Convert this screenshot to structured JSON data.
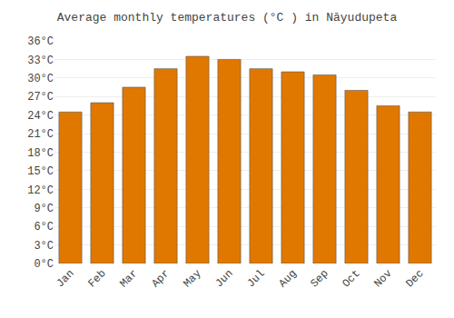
{
  "chart_data": {
    "type": "bar",
    "title": "Average monthly temperatures (°C ) in Nāyudupeta",
    "categories": [
      "Jan",
      "Feb",
      "Mar",
      "Apr",
      "May",
      "Jun",
      "Jul",
      "Aug",
      "Sep",
      "Oct",
      "Nov",
      "Dec"
    ],
    "values": [
      24.5,
      26.0,
      28.5,
      31.5,
      33.5,
      33.0,
      31.5,
      31.0,
      30.5,
      28.0,
      25.5,
      24.5
    ],
    "color": "#E07800",
    "ylim": [
      0,
      36
    ],
    "yticks": [
      {
        "value": 0,
        "label": "0°C"
      },
      {
        "value": 3,
        "label": "3°C"
      },
      {
        "value": 6,
        "label": "6°C"
      },
      {
        "value": 9,
        "label": "9°C"
      },
      {
        "value": 12,
        "label": "12°C"
      },
      {
        "value": 15,
        "label": "15°C"
      },
      {
        "value": 18,
        "label": "18°C"
      },
      {
        "value": 21,
        "label": "21°C"
      },
      {
        "value": 24,
        "label": "24°C"
      },
      {
        "value": 27,
        "label": "27°C"
      },
      {
        "value": 30,
        "label": "30°C"
      },
      {
        "value": 33,
        "label": "33°C"
      },
      {
        "value": 36,
        "label": "36°C"
      }
    ],
    "grid": true
  }
}
